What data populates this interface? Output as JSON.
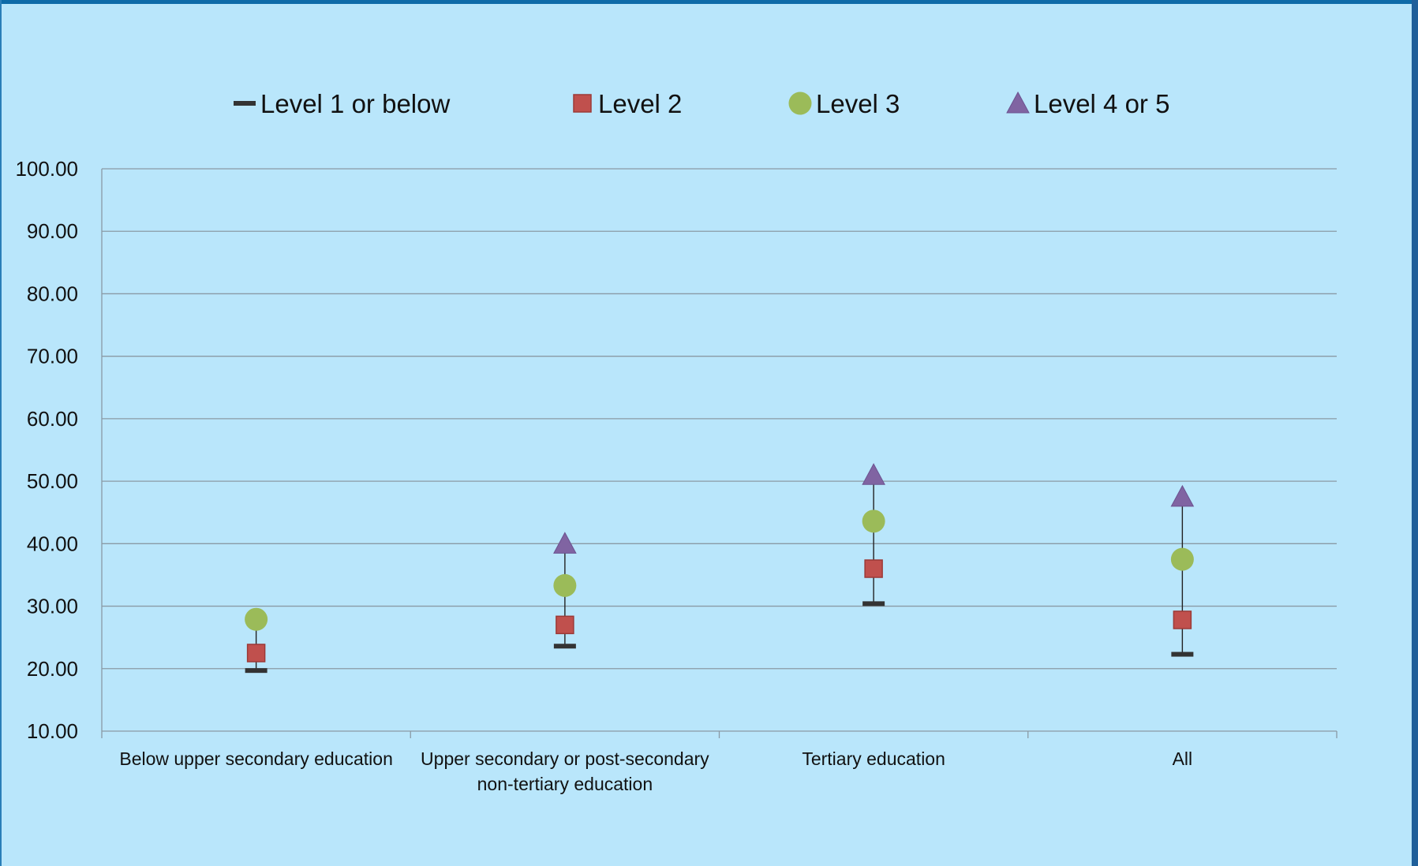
{
  "chart_data": {
    "type": "scatter",
    "title": "",
    "xlabel": "",
    "ylabel": "",
    "ylim": [
      10,
      100
    ],
    "yticks": [
      "10.00",
      "20.00",
      "30.00",
      "40.00",
      "50.00",
      "60.00",
      "70.00",
      "80.00",
      "90.00",
      "100.00"
    ],
    "categories": [
      [
        "Below upper secondary education"
      ],
      [
        "Upper secondary or post-secondary",
        "non-tertiary education"
      ],
      [
        "Tertiary education"
      ],
      [
        "All"
      ]
    ],
    "grid": true,
    "legend_position": "top",
    "series": [
      {
        "name": "Level 1 or below",
        "marker": "dash",
        "color": "#333333",
        "values": [
          19.7,
          23.6,
          30.4,
          22.3
        ]
      },
      {
        "name": "Level 2",
        "marker": "square",
        "color": "#c0504d",
        "values": [
          22.5,
          27.0,
          36.0,
          27.8
        ]
      },
      {
        "name": "Level 3",
        "marker": "circle",
        "color": "#9bbb59",
        "values": [
          27.9,
          33.3,
          43.6,
          37.5
        ]
      },
      {
        "name": "Level 4 or 5",
        "marker": "triangle",
        "color": "#8064a2",
        "values": [
          null,
          40.0,
          51.0,
          47.5
        ]
      }
    ]
  }
}
